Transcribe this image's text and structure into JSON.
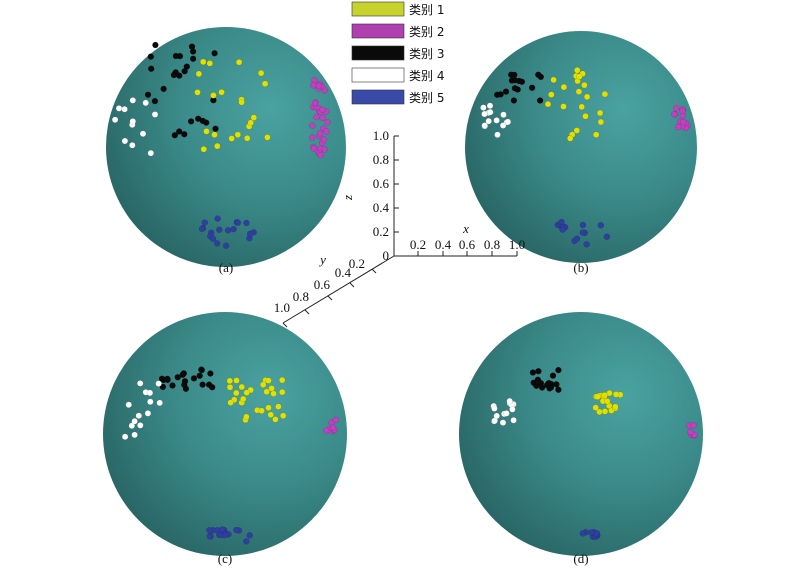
{
  "panels": [
    {
      "label": "(a)"
    },
    {
      "label": "(b)"
    },
    {
      "label": "(c)"
    },
    {
      "label": "(d)"
    }
  ],
  "legend": [
    {
      "label": "类别 1",
      "color": "#c8d22e"
    },
    {
      "label": "类别 2",
      "color": "#b040b0"
    },
    {
      "label": "类别 3",
      "color": "#0a0a0a"
    },
    {
      "label": "类别 4",
      "color": "#ffffff"
    },
    {
      "label": "类别 5",
      "color": "#3a4aa8"
    }
  ],
  "axes": {
    "x_label": "x",
    "y_label": "y",
    "z_label": "z",
    "x_ticks": [
      "0.2",
      "0.4",
      "0.6",
      "0.8",
      "1.0"
    ],
    "y_ticks": [
      "0.2",
      "0.4",
      "0.6",
      "0.8",
      "1.0"
    ],
    "z_ticks": [
      "0",
      "0.2",
      "0.4",
      "0.6",
      "0.8",
      "1.0"
    ]
  },
  "style": {
    "sphere_color": "#3a8a89",
    "point_colors": {
      "c1": "#e2e000",
      "c2": "#c040c0",
      "c3": "#0a0a0a",
      "c4": "#ffffff",
      "c5": "#2f3fa0"
    }
  }
}
